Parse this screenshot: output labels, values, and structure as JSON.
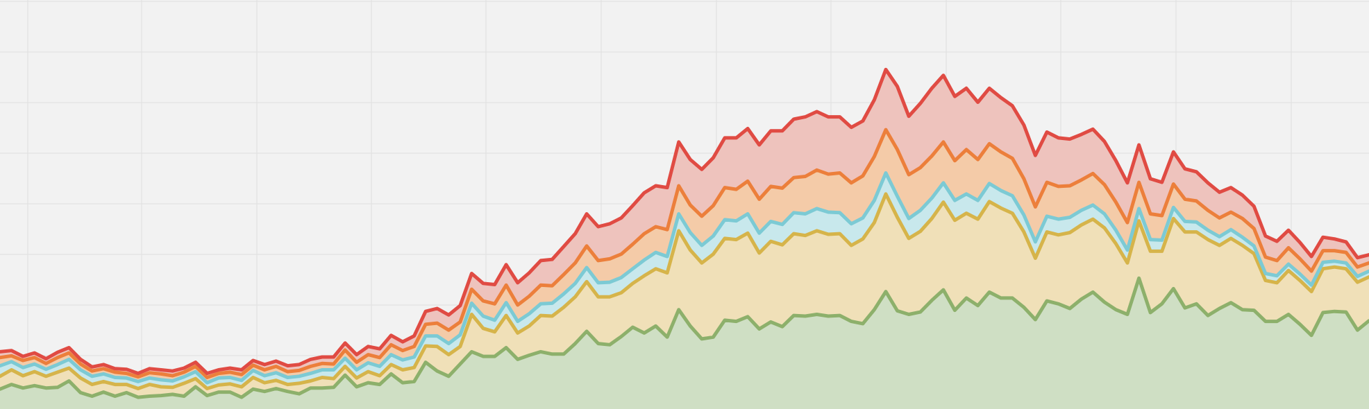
{
  "chart_data": {
    "type": "area",
    "stacked": true,
    "title": "",
    "xlabel": "",
    "ylabel": "",
    "ylim": [
      0,
      700
    ],
    "grid": true,
    "legend": "none",
    "x": [
      0,
      1,
      2,
      3,
      4,
      5,
      6,
      7,
      8,
      9,
      10,
      11,
      12,
      13,
      14,
      15,
      16,
      17,
      18,
      19,
      20,
      21,
      22,
      23,
      24,
      25,
      26,
      27,
      28,
      29,
      30,
      31,
      32,
      33,
      34,
      35,
      36,
      37,
      38,
      39,
      40,
      41,
      42,
      43,
      44,
      45,
      46,
      47,
      48,
      49,
      50,
      51,
      52,
      53,
      54,
      55,
      56,
      57,
      58,
      59,
      60,
      61,
      62,
      63,
      64,
      65,
      66,
      67,
      68,
      69,
      70,
      71,
      72,
      73,
      74,
      75,
      76,
      77,
      78,
      79,
      80,
      81,
      82,
      83,
      84,
      85,
      86,
      87,
      88,
      89,
      90,
      91,
      92,
      93,
      94,
      95,
      96,
      97,
      98,
      99,
      100,
      101,
      102,
      103,
      104,
      105,
      106,
      107,
      108,
      109,
      110,
      111,
      112,
      113,
      114,
      115,
      116,
      117,
      118,
      119
    ],
    "series": [
      {
        "color": "#8db06b",
        "fill": "#cfdfc4",
        "values": [
          34,
          42,
          36,
          40,
          36,
          37,
          48,
          28,
          22,
          29,
          22,
          28,
          20,
          22,
          23,
          25,
          22,
          38,
          23,
          29,
          29,
          20,
          34,
          30,
          35,
          30,
          26,
          36,
          36,
          37,
          58,
          38,
          45,
          42,
          60,
          45,
          47,
          80,
          65,
          56,
          77,
          98,
          90,
          90,
          105,
          85,
          92,
          98,
          94,
          94,
          112,
          133,
          112,
          110,
          124,
          140,
          130,
          142,
          123,
          170,
          142,
          120,
          123,
          152,
          150,
          158,
          137,
          149,
          141,
          160,
          159,
          162,
          159,
          160,
          150,
          146,
          170,
          201,
          168,
          162,
          166,
          186,
          204,
          169,
          190,
          177,
          200,
          190,
          190,
          174,
          153,
          185,
          180,
          172,
          188,
          200,
          183,
          170,
          162,
          224,
          165,
          180,
          206,
          173,
          180,
          160,
          172,
          182,
          170,
          169,
          150,
          150,
          162,
          145,
          126,
          165,
          167,
          166,
          135,
          151
        ]
      },
      {
        "color": "#d6b44a",
        "fill": "#f0e0b8",
        "values": [
          22,
          25,
          21,
          24,
          20,
          26,
          22,
          25,
          20,
          18,
          20,
          14,
          15,
          20,
          15,
          12,
          22,
          14,
          12,
          12,
          14,
          18,
          20,
          15,
          14,
          12,
          18,
          12,
          18,
          15,
          15,
          15,
          19,
          15,
          16,
          22,
          24,
          28,
          42,
          37,
          30,
          64,
          48,
          42,
          55,
          45,
          50,
          62,
          65,
          80,
          80,
          85,
          80,
          82,
          75,
          75,
          98,
          98,
          110,
          135,
          130,
          130,
          142,
          140,
          140,
          143,
          130,
          138,
          140,
          140,
          138,
          143,
          140,
          140,
          130,
          145,
          149,
          167,
          160,
          130,
          138,
          140,
          150,
          154,
          145,
          148,
          155,
          154,
          145,
          129,
          105,
          118,
          118,
          130,
          127,
          125,
          127,
          113,
          88,
          98,
          105,
          90,
          120,
          130,
          123,
          130,
          108,
          110,
          110,
          97,
          70,
          66,
          75,
          75,
          75,
          75,
          76,
          74,
          82,
          75
        ]
      },
      {
        "color": "#7ccad4",
        "fill": "#c8e8ec",
        "values": [
          18,
          14,
          14,
          13,
          12,
          13,
          15,
          14,
          14,
          13,
          12,
          11,
          12,
          11,
          12,
          11,
          11,
          12,
          10,
          12,
          11,
          11,
          12,
          12,
          13,
          12,
          12,
          13,
          13,
          15,
          14,
          14,
          15,
          16,
          17,
          17,
          18,
          17,
          18,
          19,
          20,
          19,
          21,
          20,
          22,
          20,
          21,
          20,
          22,
          23,
          23,
          24,
          24,
          25,
          26,
          25,
          27,
          28,
          28,
          29,
          30,
          30,
          31,
          32,
          32,
          33,
          34,
          34,
          35,
          36,
          37,
          38,
          38,
          36,
          37,
          36,
          38,
          36,
          36,
          34,
          36,
          35,
          33,
          34,
          33,
          32,
          31,
          30,
          30,
          29,
          28,
          27,
          27,
          26,
          25,
          24,
          24,
          23,
          22,
          21,
          20,
          19,
          19,
          18,
          17,
          16,
          15,
          15,
          14,
          13,
          12,
          12,
          11,
          11,
          11,
          11,
          10,
          10,
          10,
          10
        ]
      },
      {
        "color": "#ec7f3b",
        "fill": "#f4cba8",
        "values": [
          14,
          10,
          12,
          11,
          10,
          12,
          11,
          10,
          9,
          9,
          9,
          8,
          8,
          9,
          10,
          9,
          8,
          9,
          9,
          8,
          9,
          10,
          9,
          10,
          11,
          10,
          10,
          12,
          11,
          10,
          14,
          13,
          14,
          15,
          17,
          16,
          18,
          20,
          22,
          23,
          22,
          24,
          26,
          28,
          30,
          28,
          30,
          32,
          30,
          33,
          35,
          37,
          38,
          40,
          40,
          42,
          45,
          44,
          46,
          48,
          47,
          50,
          52,
          55,
          54,
          56,
          58,
          60,
          62,
          60,
          64,
          66,
          65,
          68,
          70,
          72,
          75,
          74,
          80,
          75,
          73,
          72,
          70,
          68,
          76,
          70,
          68,
          66,
          64,
          62,
          60,
          58,
          56,
          54,
          52,
          54,
          50,
          48,
          47,
          45,
          44,
          42,
          40,
          38,
          36,
          34,
          32,
          30,
          32,
          30,
          28,
          26,
          28,
          26,
          24,
          20,
          18,
          18,
          16,
          14
        ]
      },
      {
        "color": "#e04b43",
        "fill": "#eec3bd",
        "values": [
          10,
          9,
          7,
          8,
          8,
          9,
          9,
          8,
          7,
          7,
          6,
          7,
          6,
          7,
          7,
          8,
          7,
          7,
          7,
          6,
          7,
          8,
          8,
          9,
          9,
          10,
          10,
          12,
          11,
          12,
          12,
          13,
          14,
          15,
          16,
          15,
          18,
          22,
          25,
          26,
          28,
          27,
          30,
          33,
          35,
          38,
          40,
          42,
          45,
          48,
          50,
          55,
          58,
          60,
          62,
          66,
          70,
          70,
          72,
          75,
          78,
          80,
          82,
          85,
          88,
          90,
          93,
          95,
          98,
          100,
          102,
          100,
          98,
          96,
          95,
          94,
          97,
          103,
          108,
          100,
          110,
          116,
          114,
          110,
          105,
          98,
          95,
          93,
          90,
          92,
          88,
          86,
          83,
          80,
          78,
          76,
          74,
          71,
          68,
          64,
          60,
          57,
          55,
          52,
          50,
          47,
          44,
          42,
          40,
          38,
          36,
          33,
          30,
          28,
          25,
          23,
          20,
          18,
          16,
          14
        ]
      }
    ]
  }
}
